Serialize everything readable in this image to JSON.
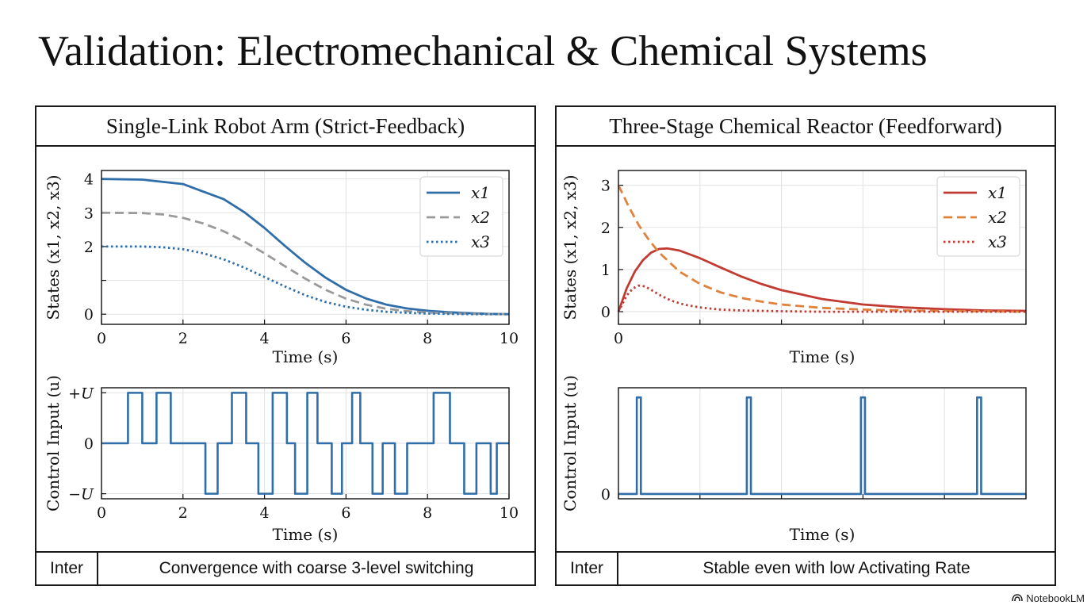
{
  "title": "Validation: Electromechanical & Chemical Systems",
  "brand": "NotebookLM",
  "colors": {
    "blue": "#2f6ea8",
    "gray": "#9a9a9a",
    "red": "#c23b33",
    "orange": "#e0823c"
  },
  "panels": [
    {
      "heading": "Single-Link Robot Arm (Strict-Feedback)",
      "footer_label": "Inter",
      "footer_text": "Convergence with coarse 3-level switching"
    },
    {
      "heading": "Three-Stage Chemical Reactor (Feedforward)",
      "footer_label": "Inter",
      "footer_text": "Stable even with low Activating Rate"
    }
  ],
  "chart_data": [
    {
      "id": "robot-states",
      "type": "line",
      "ylabel": "States (x1, x2, x3)",
      "xlabel": "Time (s)",
      "xlim": [
        0,
        10
      ],
      "ylim": [
        -0.3,
        4.25
      ],
      "xticks": [
        0,
        2,
        4,
        6,
        8,
        10
      ],
      "xtick_labels": [
        "0",
        "2",
        "4",
        "6",
        "8",
        "10"
      ],
      "yticks": [
        0,
        1,
        2,
        3,
        4
      ],
      "ytick_labels": [
        "0",
        "",
        "2",
        "3",
        "4"
      ],
      "grid": true,
      "legend": "top-right",
      "series": [
        {
          "name": "x1",
          "color": "#2f6ea8",
          "style": "solid",
          "x": [
            0,
            1,
            2,
            3,
            3.5,
            4,
            4.5,
            5,
            5.5,
            6,
            6.5,
            7,
            7.5,
            8,
            8.5,
            9,
            9.5,
            10
          ],
          "y": [
            4.0,
            3.98,
            3.85,
            3.4,
            3.02,
            2.55,
            2.02,
            1.52,
            1.08,
            0.72,
            0.46,
            0.28,
            0.17,
            0.1,
            0.06,
            0.03,
            0.01,
            0.0
          ]
        },
        {
          "name": "x2",
          "color": "#9a9a9a",
          "style": "dashed",
          "x": [
            0,
            1,
            1.5,
            2,
            2.5,
            3,
            3.5,
            4,
            4.5,
            5,
            5.5,
            6,
            6.5,
            7,
            7.5,
            8,
            9,
            10
          ],
          "y": [
            3.0,
            2.99,
            2.95,
            2.85,
            2.68,
            2.45,
            2.15,
            1.8,
            1.42,
            1.05,
            0.72,
            0.46,
            0.28,
            0.16,
            0.09,
            0.05,
            0.01,
            0.0
          ]
        },
        {
          "name": "x3",
          "color": "#2f6ea8",
          "style": "dotted",
          "x": [
            0,
            1,
            1.5,
            2,
            2.5,
            3,
            3.5,
            4,
            4.5,
            5,
            5.5,
            6,
            6.5,
            7,
            7.5,
            8,
            9,
            10
          ],
          "y": [
            2.0,
            2.0,
            1.98,
            1.92,
            1.8,
            1.62,
            1.38,
            1.1,
            0.82,
            0.56,
            0.36,
            0.22,
            0.13,
            0.07,
            0.04,
            0.02,
            0.0,
            0.0
          ]
        }
      ]
    },
    {
      "id": "robot-control",
      "type": "line",
      "ylabel": "Control Input (u)",
      "xlabel": "Time (s)",
      "xlim": [
        0,
        10
      ],
      "ylim": [
        -1.1,
        1.1
      ],
      "xticks": [
        0,
        2,
        4,
        6,
        8,
        10
      ],
      "xtick_labels": [
        "0",
        "2",
        "4",
        "6",
        "8",
        "10"
      ],
      "yticks": [
        -1,
        0,
        1
      ],
      "ytick_labels": [
        "−U",
        "0",
        "+U"
      ],
      "grid": true,
      "series": [
        {
          "name": "u",
          "color": "#2f6ea8",
          "style": "step",
          "x": [
            0,
            0.65,
            1.0,
            1.35,
            1.7,
            2.3,
            2.55,
            2.85,
            3.2,
            3.55,
            3.85,
            4.2,
            4.55,
            4.75,
            5.05,
            5.3,
            5.65,
            5.9,
            6.15,
            6.35,
            6.65,
            6.9,
            7.2,
            7.5,
            7.85,
            8.15,
            8.55,
            8.9,
            9.2,
            9.55,
            9.7,
            10
          ],
          "y": [
            0,
            1,
            0,
            1,
            0,
            0,
            -1,
            0,
            1,
            0,
            -1,
            1,
            0,
            -1,
            1,
            0,
            -1,
            0,
            1,
            0,
            -1,
            0,
            -1,
            0,
            0,
            1,
            0,
            -1,
            0,
            -1,
            0,
            0
          ]
        }
      ]
    },
    {
      "id": "reactor-states",
      "type": "line",
      "ylabel": "States (x1, x2, x3)",
      "xlabel": "Time (s)",
      "xlim": [
        0,
        10
      ],
      "ylim": [
        -0.3,
        3.35
      ],
      "xticks": [
        0,
        2,
        4,
        6,
        8,
        10
      ],
      "xtick_labels": [
        "0",
        "",
        "",
        "",
        "",
        ""
      ],
      "yticks": [
        0,
        1,
        2,
        3
      ],
      "ytick_labels": [
        "0",
        "1",
        "2",
        "3"
      ],
      "grid": true,
      "legend": "top-right",
      "series": [
        {
          "name": "x1",
          "color": "#c23b33",
          "style": "solid",
          "x": [
            0,
            0.2,
            0.4,
            0.6,
            0.8,
            1.0,
            1.2,
            1.5,
            2,
            2.5,
            3,
            3.5,
            4,
            5,
            6,
            7,
            8,
            9,
            10
          ],
          "y": [
            0,
            0.55,
            0.95,
            1.22,
            1.4,
            1.49,
            1.5,
            1.45,
            1.27,
            1.05,
            0.84,
            0.66,
            0.51,
            0.3,
            0.17,
            0.1,
            0.06,
            0.03,
            0.02
          ]
        },
        {
          "name": "x2",
          "color": "#e0823c",
          "style": "dashed",
          "x": [
            0,
            0.25,
            0.5,
            0.75,
            1.0,
            1.5,
            2,
            2.5,
            3,
            3.5,
            4,
            5,
            6,
            7,
            8,
            9,
            10
          ],
          "y": [
            3.0,
            2.5,
            2.05,
            1.7,
            1.4,
            0.95,
            0.66,
            0.46,
            0.33,
            0.24,
            0.17,
            0.09,
            0.05,
            0.03,
            0.02,
            0.01,
            0.0
          ]
        },
        {
          "name": "x3",
          "color": "#c23b33",
          "style": "dotted",
          "x": [
            0,
            0.2,
            0.35,
            0.5,
            0.65,
            0.8,
            1.0,
            1.3,
            1.6,
            2,
            2.5,
            3,
            4,
            5,
            6,
            8,
            10
          ],
          "y": [
            0,
            0.38,
            0.55,
            0.62,
            0.6,
            0.52,
            0.4,
            0.26,
            0.17,
            0.1,
            0.05,
            0.03,
            0.01,
            0.0,
            0.0,
            0.0,
            0.0
          ]
        }
      ]
    },
    {
      "id": "reactor-control",
      "type": "line",
      "ylabel": "Control Input (u)",
      "xlabel": "Time (s)",
      "xlim": [
        0,
        10
      ],
      "ylim": [
        -0.1,
        2.2
      ],
      "xticks": [
        0,
        2,
        4,
        6,
        8,
        10
      ],
      "xtick_labels": [
        "",
        "",
        "",
        "",
        "",
        ""
      ],
      "yticks": [
        0
      ],
      "ytick_labels": [
        "0"
      ],
      "grid": true,
      "series": [
        {
          "name": "u",
          "color": "#2f6ea8",
          "style": "step",
          "x": [
            0,
            0.45,
            0.55,
            3.15,
            3.25,
            5.95,
            6.05,
            8.8,
            8.9,
            10
          ],
          "y": [
            0,
            2,
            0,
            2,
            0,
            2,
            0,
            2,
            0,
            0
          ]
        }
      ]
    }
  ]
}
